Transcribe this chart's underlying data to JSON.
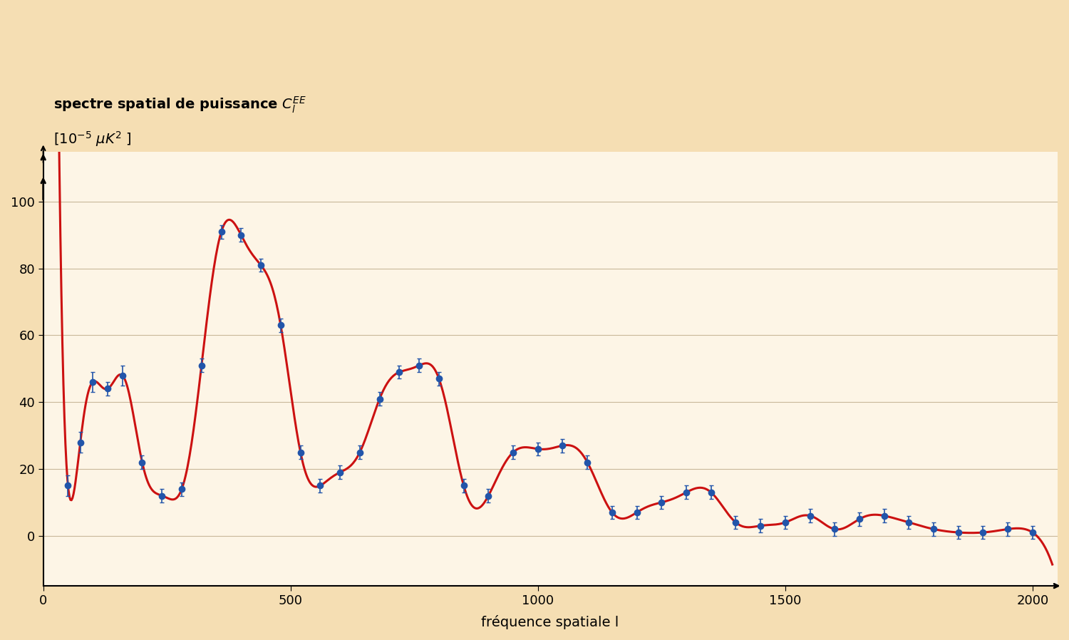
{
  "background_color": "#f5deb3",
  "plot_bg_color": "#fdf5e6",
  "title_line1": "spectre spatial de puissance C",
  "title_line1_super": "EE",
  "title_line1_sub": "l",
  "title_line2": "[10⁻⁵ μK² ]",
  "xlabel": "fréquence spatiale l",
  "ylabel": "",
  "xlim": [
    0,
    2050
  ],
  "ylim": [
    -15,
    115
  ],
  "yticks": [
    0,
    20,
    40,
    60,
    80,
    100
  ],
  "xticks": [
    0,
    500,
    1000,
    1500,
    2000
  ],
  "data_points_x": [
    50,
    75,
    100,
    130,
    160,
    200,
    240,
    280,
    320,
    360,
    400,
    440,
    480,
    520,
    560,
    600,
    640,
    680,
    720,
    760,
    800,
    850,
    900,
    950,
    1000,
    1050,
    1100,
    1150,
    1200,
    1250,
    1300,
    1350,
    1400,
    1450,
    1500,
    1550,
    1600,
    1650,
    1700,
    1750,
    1800,
    1850,
    1900,
    1950,
    2000
  ],
  "data_points_y": [
    15,
    28,
    46,
    44,
    48,
    22,
    12,
    14,
    51,
    91,
    90,
    81,
    63,
    25,
    15,
    19,
    25,
    41,
    49,
    51,
    47,
    15,
    12,
    25,
    26,
    27,
    22,
    7,
    7,
    10,
    13,
    13,
    4,
    3,
    4,
    6,
    2,
    5,
    6,
    4,
    2,
    1,
    1,
    2,
    1
  ],
  "data_errors": [
    3,
    3,
    3,
    2,
    3,
    2,
    2,
    2,
    2,
    2,
    2,
    2,
    2,
    2,
    2,
    2,
    2,
    2,
    2,
    2,
    2,
    2,
    2,
    2,
    2,
    2,
    2,
    2,
    2,
    2,
    2,
    2,
    2,
    2,
    2,
    2,
    2,
    2,
    2,
    2,
    2,
    2,
    2,
    2,
    2
  ],
  "dot_color": "#2255aa",
  "line_color": "#cc1111",
  "dot_size": 6,
  "line_width": 2.2,
  "fontsize_labels": 14,
  "fontsize_ticks": 13
}
